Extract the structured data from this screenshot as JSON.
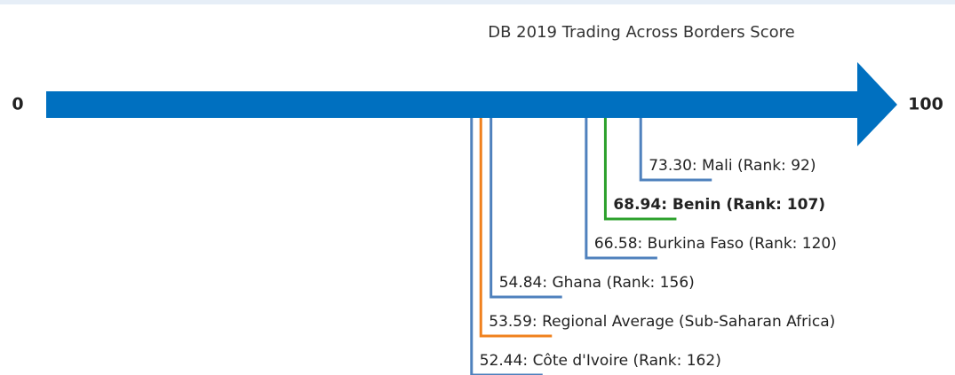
{
  "chart_data": {
    "type": "number-line",
    "title": "DB 2019 Trading Across Borders Score",
    "xlim": [
      0,
      100
    ],
    "xticks": [
      0,
      100
    ],
    "axis_color": "#0070c0",
    "values": [
      73.3,
      68.94,
      66.58,
      54.84,
      53.59,
      52.44
    ],
    "value_labels": [
      "73.30: Mali (Rank: 92)",
      "68.94: Benin (Rank: 107)",
      "66.58: Burkina Faso (Rank: 120)",
      "54.84: Ghana (Rank: 156)",
      "53.59: Regional Average (Sub-Saharan Africa)",
      "52.44: Côte d'Ivoire (Rank: 162)"
    ],
    "colors": [
      "#4f81bd",
      "#2ca02c",
      "#4f81bd",
      "#4f81bd",
      "#f0811e",
      "#4f81bd"
    ],
    "bold": [
      false,
      true,
      false,
      false,
      false,
      false
    ]
  }
}
